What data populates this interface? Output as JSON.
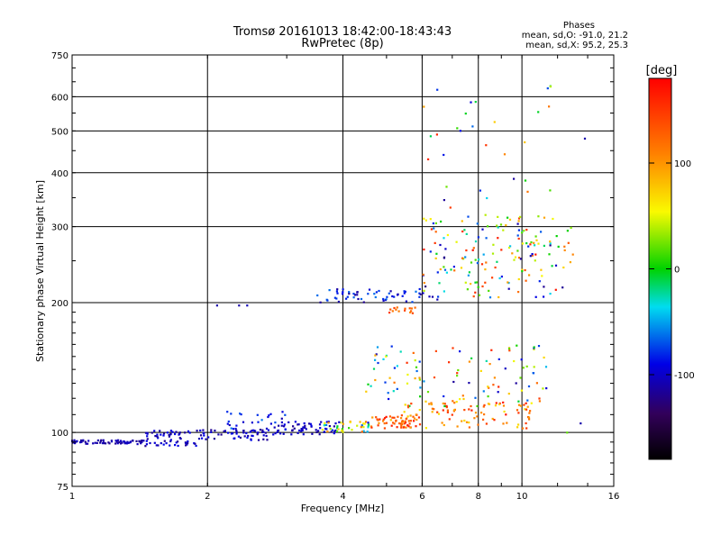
{
  "header": {
    "title": "Tromsø 20161013 18:42:00-18:43:43",
    "subtitle": "RwPretec (8p)"
  },
  "phases": {
    "heading": "Phases",
    "line_o": "mean, sd,O: -91.0, 21.2",
    "line_x": "mean, sd,X:  95.2, 25.3"
  },
  "colorbar": {
    "unit": "[deg]",
    "ticks": [
      "100",
      "0",
      "-100"
    ],
    "tick_values": [
      100,
      0,
      -100
    ],
    "range": [
      -180,
      180
    ]
  },
  "chart_data": {
    "type": "scatter",
    "xlabel": "Frequency [MHz]",
    "ylabel": "Stationary phase Virtual Height [km]",
    "xscale": "log",
    "yscale": "log",
    "xlim": [
      1,
      16
    ],
    "ylim": [
      75,
      750
    ],
    "x_ticks": [
      1,
      2,
      4,
      6,
      8,
      10,
      16
    ],
    "x_tick_labels": [
      "1",
      "2",
      "4",
      "6",
      "8",
      "10",
      "16"
    ],
    "y_ticks": [
      75,
      100,
      200,
      300,
      400,
      500,
      600,
      750
    ],
    "y_tick_labels": [
      "75",
      "100",
      "200",
      "300",
      "400",
      "500",
      "600",
      "750"
    ],
    "grid": true,
    "color_by": "phase [deg]",
    "groups": [
      {
        "x_range": [
          1.0,
          1.45
        ],
        "h": [
          94,
          96
        ],
        "phase": [
          -120,
          -100
        ],
        "count": 70
      },
      {
        "x_range": [
          1.45,
          1.9
        ],
        "h": [
          93,
          101
        ],
        "phase": [
          -120,
          -85
        ],
        "count": 60
      },
      {
        "x_range": [
          1.9,
          2.8
        ],
        "h": [
          96,
          102
        ],
        "phase": [
          -120,
          -85
        ],
        "count": 60
      },
      {
        "x_range": [
          2.2,
          3.0
        ],
        "h": [
          101,
          112
        ],
        "phase": [
          -110,
          -60
        ],
        "count": 25
      },
      {
        "x_range": [
          2.8,
          3.9
        ],
        "h": [
          99,
          106
        ],
        "phase": [
          -120,
          -90
        ],
        "count": 60
      },
      {
        "x_range": [
          3.6,
          4.6
        ],
        "h": [
          100,
          106
        ],
        "phase": [
          -100,
          130
        ],
        "count": 40
      },
      {
        "x_range": [
          4.6,
          5.9
        ],
        "h": [
          102,
          110
        ],
        "phase": [
          80,
          170
        ],
        "count": 55
      },
      {
        "x_range": [
          5.4,
          10.5
        ],
        "h": [
          102,
          118
        ],
        "phase": [
          60,
          170
        ],
        "count": 90
      },
      {
        "x_range": [
          4.4,
          11.5
        ],
        "h": [
          115,
          160
        ],
        "phase": [
          -120,
          170
        ],
        "count": 110
      },
      {
        "x_range": [
          3.5,
          6.6
        ],
        "h": [
          200,
          215
        ],
        "phase": [
          -120,
          -60
        ],
        "count": 60
      },
      {
        "x_range": [
          5.0,
          5.8
        ],
        "h": [
          188,
          195
        ],
        "phase": [
          100,
          150
        ],
        "count": 15
      },
      {
        "x_range": [
          6.0,
          13.0
        ],
        "h": [
          205,
          320
        ],
        "phase": [
          -130,
          170
        ],
        "count": 170
      },
      {
        "x_range": [
          6.0,
          12.0
        ],
        "h": [
          330,
          640
        ],
        "phase": [
          -120,
          160
        ],
        "count": 30
      }
    ],
    "isolated_points": [
      {
        "x": 2.1,
        "h": 197,
        "phase": -110
      },
      {
        "x": 2.35,
        "h": 197,
        "phase": -110
      },
      {
        "x": 2.45,
        "h": 197,
        "phase": -105
      },
      {
        "x": 13.8,
        "h": 480,
        "phase": -110
      },
      {
        "x": 12.6,
        "h": 100,
        "phase": 20
      },
      {
        "x": 13.5,
        "h": 105,
        "phase": -110
      }
    ]
  }
}
